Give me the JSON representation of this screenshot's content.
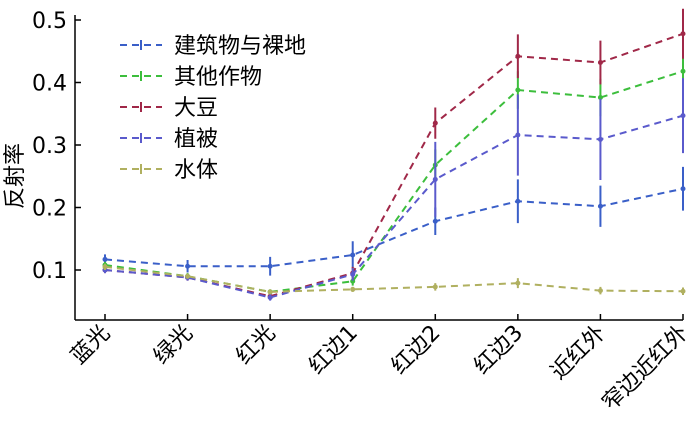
{
  "chart_data": {
    "type": "line",
    "ylabel": "反射率",
    "xlabel": "",
    "categories": [
      "蓝光",
      "绿光",
      "红光",
      "红边1",
      "红边2",
      "红边3",
      "近红外",
      "窄边近红外"
    ],
    "ylim": [
      0.02,
      0.5
    ],
    "yticks": [
      0.1,
      0.2,
      0.3,
      0.4,
      0.5
    ],
    "ytick_labels": [
      "0.1",
      "0.2",
      "0.3",
      "0.4",
      "0.5"
    ],
    "legend_placement": "top-left",
    "grid": false,
    "series": [
      {
        "name": "建筑物与裸地",
        "color": "#3a5fc8",
        "values": [
          0.117,
          0.106,
          0.106,
          0.124,
          0.178,
          0.21,
          0.202,
          0.23
        ],
        "errors": [
          0.008,
          0.01,
          0.015,
          0.022,
          0.022,
          0.035,
          0.033,
          0.035
        ]
      },
      {
        "name": "其他作物",
        "color": "#3cbe3c",
        "values": [
          0.108,
          0.09,
          0.065,
          0.082,
          0.268,
          0.388,
          0.376,
          0.418
        ],
        "errors": [
          0.005,
          0.005,
          0.004,
          0.007,
          0.025,
          0.03,
          0.03,
          0.035
        ]
      },
      {
        "name": "大豆",
        "color": "#a02848",
        "values": [
          0.1,
          0.088,
          0.058,
          0.095,
          0.335,
          0.442,
          0.432,
          0.478
        ],
        "errors": [
          0.005,
          0.005,
          0.005,
          0.01,
          0.025,
          0.035,
          0.035,
          0.04
        ]
      },
      {
        "name": "植被",
        "color": "#5a5acc",
        "values": [
          0.1,
          0.088,
          0.056,
          0.093,
          0.245,
          0.316,
          0.309,
          0.347
        ],
        "errors": [
          0.005,
          0.005,
          0.005,
          0.01,
          0.06,
          0.065,
          0.065,
          0.06
        ]
      },
      {
        "name": "水体",
        "color": "#b0b060",
        "values": [
          0.105,
          0.09,
          0.065,
          0.069,
          0.073,
          0.079,
          0.067,
          0.066
        ],
        "errors": [
          0.005,
          0.004,
          0.004,
          0.004,
          0.006,
          0.008,
          0.006,
          0.006
        ]
      }
    ]
  }
}
